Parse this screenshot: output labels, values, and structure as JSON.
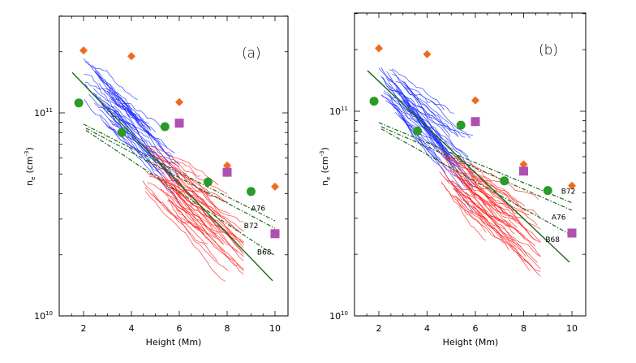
{
  "chart_data": [
    {
      "type": "scatter",
      "panel_label": "(a)",
      "xlabel": "Height (Mm)",
      "ylabel": "n_e (cm^-3)",
      "ylabel_parts": {
        "main": "n",
        "sub": "e",
        "unit": "(cm",
        "exp": "-3",
        "close": ")"
      },
      "xlim": [
        1,
        10.5
      ],
      "ylim": [
        10000000000.0,
        300000000000.0
      ],
      "yscale": "log",
      "xticks": [
        2,
        4,
        6,
        8,
        10
      ],
      "xtick_labels": [
        "2",
        "4",
        "6",
        "8",
        "10"
      ],
      "yticks": [
        {
          "base": "10",
          "exp": "10",
          "value": 10000000000.0
        },
        {
          "base": "10",
          "exp": "11",
          "value": 100000000000.0
        }
      ],
      "markers": {
        "diamonds": {
          "color": "#f06a1e",
          "points": [
            [
              2,
              203000000000.0
            ],
            [
              4,
              190000000000.0
            ],
            [
              6,
              113000000000.0
            ],
            [
              8,
              55000000000.0
            ],
            [
              10,
              43300000000.0
            ]
          ]
        },
        "circles": {
          "color": "#2a9a2a",
          "points": [
            [
              1.8,
              112000000000.0
            ],
            [
              3.6,
              80000000000.0
            ],
            [
              5.4,
              85500000000.0
            ],
            [
              7.2,
              45700000000.0
            ],
            [
              9.0,
              41000000000.0
            ]
          ]
        },
        "squares": {
          "color": "#b050b0",
          "points": [
            [
              6,
              89000000000.0
            ],
            [
              8,
              51000000000.0
            ],
            [
              10,
              25400000000.0
            ]
          ]
        }
      },
      "model_lines": [
        {
          "name": "solid-fit",
          "style": "solid",
          "color": "#1a6a1a",
          "points": [
            [
              1.53,
              158000000000.0
            ],
            [
              9.9,
              14900000000.0
            ]
          ]
        },
        {
          "name": "A76",
          "label": "A76",
          "style": "dashdot",
          "color": "#1a6a1a",
          "points": [
            [
              2,
              88000000000.0
            ],
            [
              10,
              29400000000.0
            ]
          ],
          "label_at": [
            9.3,
            33000000000.0
          ]
        },
        {
          "name": "B72",
          "label": "B72",
          "style": "dashdot",
          "color": "#1a6a1a",
          "points": [
            [
              2.1,
              84000000000.0
            ],
            [
              10,
              27000000000.0
            ]
          ],
          "label_at": [
            9.0,
            27000000000.0
          ]
        },
        {
          "name": "B68",
          "label": "B68",
          "style": "dashdot",
          "color": "#1a6a1a",
          "points": [
            [
              2.1,
              82000000000.0
            ],
            [
              10,
              19800000000.0
            ]
          ],
          "label_at": [
            9.55,
            20000000000.0
          ]
        }
      ],
      "bundles": [
        {
          "name": "blue-traces",
          "color": "#1a2aff",
          "x_range": [
            2.0,
            6.0
          ],
          "center_start": 145000000000.0,
          "slope_dex_per_Mm": -0.115,
          "count": 40
        },
        {
          "name": "red-traces",
          "color": "#ff2020",
          "x_range": [
            4.4,
            8.7
          ],
          "center_start": 56000000000.0,
          "slope_dex_per_Mm": -0.095,
          "count": 45
        }
      ]
    },
    {
      "type": "scatter",
      "panel_label": "(b)",
      "xlabel": "Height (Mm)",
      "ylabel": "n_e (cm^-3)",
      "ylabel_parts": {
        "main": "n",
        "sub": "e",
        "unit": "(cm",
        "exp": "-3",
        "close": ")"
      },
      "xlim": [
        1,
        10.5
      ],
      "ylim": [
        10000000000.0,
        300000000000.0
      ],
      "yscale": "log",
      "xticks": [
        2,
        4,
        6,
        8,
        10
      ],
      "xtick_labels": [
        "2",
        "4",
        "6",
        "8",
        "10"
      ],
      "yticks": [
        {
          "base": "10",
          "exp": "10",
          "value": 10000000000.0
        },
        {
          "base": "10",
          "exp": "11",
          "value": 100000000000.0
        }
      ],
      "markers": {
        "diamonds": {
          "color": "#f06a1e",
          "points": [
            [
              2,
              203000000000.0
            ],
            [
              4,
              190000000000.0
            ],
            [
              6,
              113000000000.0
            ],
            [
              8,
              55000000000.0
            ],
            [
              10,
              43300000000.0
            ]
          ]
        },
        "circles": {
          "color": "#2a9a2a",
          "points": [
            [
              1.8,
              112000000000.0
            ],
            [
              3.6,
              80000000000.0
            ],
            [
              5.4,
              85500000000.0
            ],
            [
              7.2,
              45700000000.0
            ],
            [
              9.0,
              41000000000.0
            ]
          ]
        },
        "squares": {
          "color": "#b050b0",
          "points": [
            [
              6,
              89000000000.0
            ],
            [
              8,
              51000000000.0
            ],
            [
              10,
              25400000000.0
            ]
          ]
        }
      },
      "model_lines": [
        {
          "name": "solid-fit",
          "style": "solid",
          "color": "#1a6a1a",
          "points": [
            [
              1.53,
              158000000000.0
            ],
            [
              9.9,
              18300000000.0
            ]
          ]
        },
        {
          "name": "B72",
          "label": "B72",
          "style": "dashdot",
          "color": "#1a6a1a",
          "points": [
            [
              2,
              88000000000.0
            ],
            [
              10,
              35700000000.0
            ]
          ],
          "label_at": [
            9.85,
            39500000000.0
          ]
        },
        {
          "name": "A76",
          "label": "A76",
          "style": "dashdot",
          "color": "#1a6a1a",
          "points": [
            [
              2.1,
              84000000000.0
            ],
            [
              10,
              32800000000.0
            ]
          ],
          "label_at": [
            9.45,
            29500000000.0
          ]
        },
        {
          "name": "B68",
          "label": "B68",
          "style": "dashdot",
          "color": "#1a6a1a",
          "points": [
            [
              2.1,
              82000000000.0
            ],
            [
              10,
              24700000000.0
            ]
          ],
          "label_at": [
            9.2,
            23000000000.0
          ]
        }
      ],
      "bundles": [
        {
          "name": "blue-traces",
          "color": "#1a2aff",
          "x_range": [
            2.0,
            6.0
          ],
          "center_start": 145000000000.0,
          "slope_dex_per_Mm": -0.115,
          "count": 40
        },
        {
          "name": "red-traces",
          "color": "#ff2020",
          "x_range": [
            4.4,
            8.7
          ],
          "center_start": 56000000000.0,
          "slope_dex_per_Mm": -0.095,
          "count": 45
        }
      ]
    }
  ]
}
